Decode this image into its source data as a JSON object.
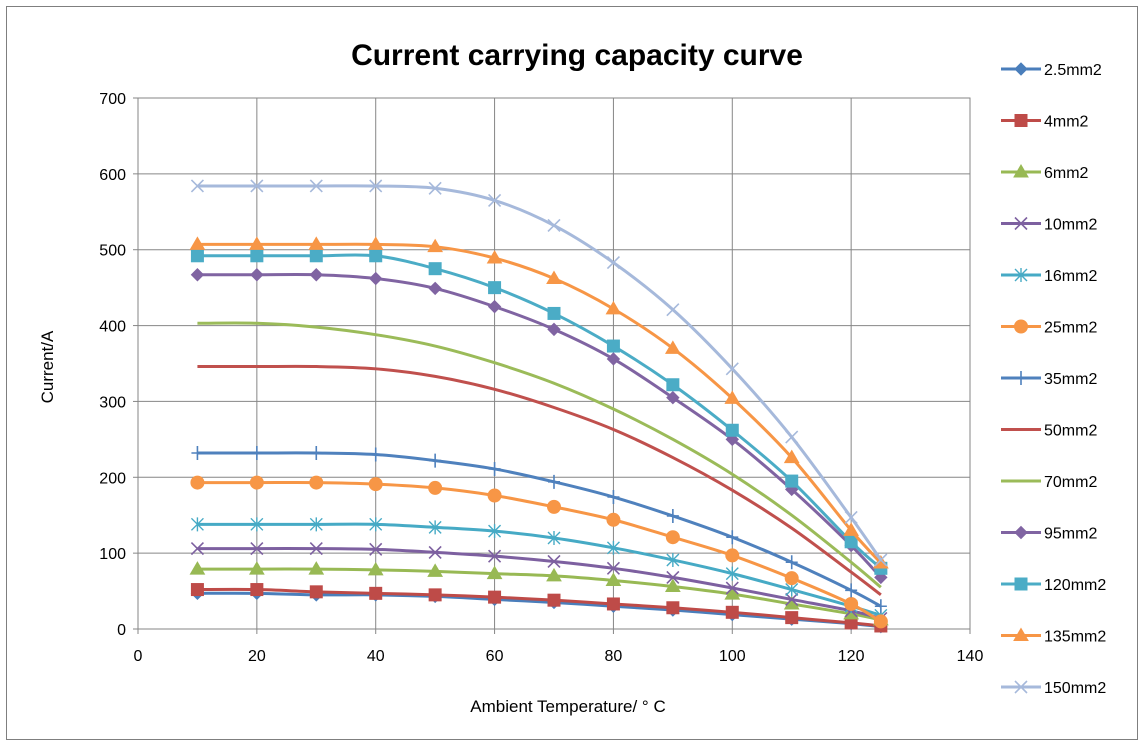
{
  "chart_data": {
    "type": "line",
    "title": "Current carrying capacity curve",
    "xlabel": "Ambient Temperature/ ° C",
    "ylabel": "Current/A",
    "xlim": [
      0,
      140
    ],
    "ylim": [
      0,
      700
    ],
    "xticks": [
      0,
      20,
      40,
      60,
      80,
      100,
      120,
      140
    ],
    "yticks": [
      0,
      100,
      200,
      300,
      400,
      500,
      600,
      700
    ],
    "grid": true,
    "legend_position": "right",
    "x": [
      10,
      20,
      30,
      40,
      50,
      60,
      70,
      80,
      90,
      100,
      110,
      120,
      125
    ],
    "series": [
      {
        "name": "2.5mm2",
        "color": "#4a7ebb",
        "marker": "diamond",
        "values": [
          47,
          47,
          45,
          45,
          43,
          39,
          35,
          30,
          25,
          19,
          13,
          7,
          3
        ]
      },
      {
        "name": "4mm2",
        "color": "#be4b48",
        "marker": "square",
        "values": [
          52,
          52,
          49,
          47,
          45,
          42,
          38,
          33,
          28,
          22,
          15,
          8,
          4
        ]
      },
      {
        "name": "6mm2",
        "color": "#98b954",
        "marker": "triangle",
        "values": [
          79,
          79,
          79,
          78,
          76,
          73,
          70,
          64,
          56,
          46,
          33,
          20,
          12
        ]
      },
      {
        "name": "10mm2",
        "color": "#7d60a0",
        "marker": "x",
        "values": [
          106,
          106,
          106,
          105,
          101,
          96,
          89,
          80,
          68,
          54,
          39,
          24,
          14
        ]
      },
      {
        "name": "16mm2",
        "color": "#46aac5",
        "marker": "asterisk",
        "values": [
          138,
          138,
          138,
          138,
          134,
          129,
          120,
          107,
          91,
          73,
          52,
          30,
          18
        ]
      },
      {
        "name": "25mm2",
        "color": "#f79646",
        "marker": "circle",
        "values": [
          193,
          193,
          193,
          191,
          186,
          176,
          161,
          144,
          121,
          97,
          67,
          33,
          10
        ]
      },
      {
        "name": "35mm2",
        "color": "#4f81bd",
        "marker": "plus",
        "values": [
          232,
          232,
          232,
          230,
          222,
          211,
          194,
          174,
          149,
          121,
          88,
          51,
          30
        ]
      },
      {
        "name": "50mm2",
        "color": "#c0504d",
        "marker": "none",
        "values": [
          346,
          346,
          346,
          343,
          333,
          316,
          292,
          263,
          226,
          183,
          133,
          75,
          45
        ]
      },
      {
        "name": "70mm2",
        "color": "#9bbb59",
        "marker": "none",
        "values": [
          403,
          403,
          398,
          388,
          373,
          351,
          324,
          290,
          250,
          204,
          150,
          88,
          55
        ]
      },
      {
        "name": "95mm2",
        "color": "#8064a2",
        "marker": "diamond",
        "values": [
          467,
          467,
          467,
          462,
          449,
          425,
          395,
          356,
          305,
          250,
          184,
          110,
          68
        ]
      },
      {
        "name": "120mm2",
        "color": "#4bacc6",
        "marker": "square",
        "values": [
          492,
          492,
          492,
          492,
          475,
          450,
          416,
          373,
          322,
          262,
          195,
          115,
          80
        ]
      },
      {
        "name": "135mm2",
        "color": "#f79646",
        "marker": "triangle",
        "values": [
          507,
          507,
          507,
          507,
          504,
          489,
          462,
          422,
          370,
          304,
          226,
          130,
          87
        ]
      },
      {
        "name": "150mm2",
        "color": "#a6b9db",
        "marker": "x",
        "values": [
          584,
          584,
          584,
          584,
          581,
          565,
          532,
          483,
          421,
          343,
          253,
          147,
          91
        ]
      }
    ]
  }
}
